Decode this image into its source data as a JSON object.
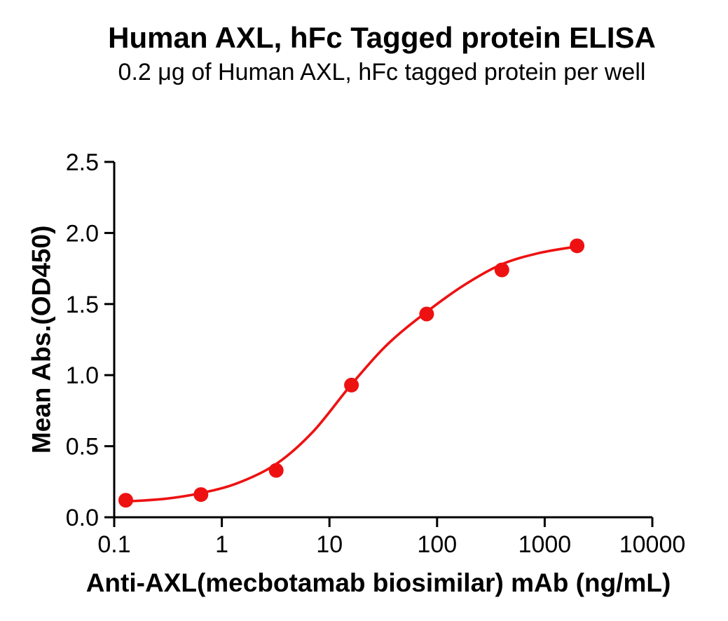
{
  "chart_data": {
    "type": "scatter",
    "title": "Human AXL, hFc Tagged protein ELISA",
    "subtitle": "0.2 μg of Human AXL, hFc tagged protein per well",
    "xlabel": "Anti-AXL(mecbotamab biosimilar) mAb (ng/mL)",
    "ylabel": "Mean Abs.(OD450)",
    "x_scale": "log10",
    "xlim": [
      0.1,
      10000
    ],
    "ylim": [
      0,
      2.5
    ],
    "x_ticks": [
      0.1,
      1,
      10,
      100,
      1000,
      10000
    ],
    "x_tick_labels": [
      "0.1",
      "1",
      "10",
      "100",
      "1000",
      "10000"
    ],
    "y_ticks": [
      0,
      0.5,
      1,
      1.5,
      2,
      2.5
    ],
    "y_tick_labels": [
      "0.0",
      "0.5",
      "1.0",
      "1.5",
      "2.0",
      "2.5"
    ],
    "grid": false,
    "legend": "none",
    "axis_color": "#000000",
    "series": [
      {
        "name": "Anti-AXL(mecbotamab biosimilar) mAb",
        "color": "#EE1111",
        "marker": "circle",
        "points": [
          {
            "x": 0.128,
            "y": 0.12
          },
          {
            "x": 0.64,
            "y": 0.16
          },
          {
            "x": 3.2,
            "y": 0.33
          },
          {
            "x": 16,
            "y": 0.93
          },
          {
            "x": 80,
            "y": 1.43
          },
          {
            "x": 400,
            "y": 1.74
          },
          {
            "x": 2000,
            "y": 1.91
          }
        ],
        "fit_curve": [
          {
            "x": 0.135,
            "y": 0.112
          },
          {
            "x": 0.3,
            "y": 0.13
          },
          {
            "x": 0.64,
            "y": 0.17
          },
          {
            "x": 1.4,
            "y": 0.24
          },
          {
            "x": 3.2,
            "y": 0.375
          },
          {
            "x": 7,
            "y": 0.6
          },
          {
            "x": 16,
            "y": 0.935
          },
          {
            "x": 35,
            "y": 1.22
          },
          {
            "x": 80,
            "y": 1.445
          },
          {
            "x": 180,
            "y": 1.635
          },
          {
            "x": 400,
            "y": 1.78
          },
          {
            "x": 900,
            "y": 1.86
          },
          {
            "x": 2000,
            "y": 1.905
          }
        ]
      }
    ]
  }
}
